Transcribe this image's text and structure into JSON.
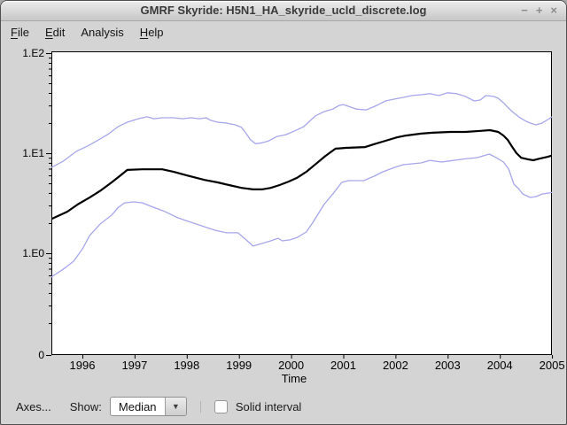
{
  "window": {
    "title": "GMRF Skyride: H5N1_HA_skyride_ucld_discrete.log",
    "controls": {
      "minimize": "−",
      "maximize": "+",
      "close": "×"
    }
  },
  "menu": {
    "items": [
      {
        "label": "File",
        "mnemonic": "F"
      },
      {
        "label": "Edit",
        "mnemonic": "E"
      },
      {
        "label": "Analysis",
        "mnemonic": null
      },
      {
        "label": "Help",
        "mnemonic": "H"
      }
    ]
  },
  "bottom_bar": {
    "axes_button": "Axes...",
    "show_label": "Show:",
    "show_value": "Median",
    "dropdown_arrow": "▼",
    "solid_interval_label": "Solid interval",
    "solid_interval_checked": false
  },
  "chart_data": {
    "type": "line",
    "title": "",
    "xlabel": "Time",
    "y_scale": "log",
    "x_range": [
      1995.41,
      2005
    ],
    "grid": false,
    "x_tick_labels": [
      "1996",
      "1997",
      "1998",
      "1999",
      "2000",
      "2001",
      "2002",
      "2003",
      "2004",
      "2005"
    ],
    "y_ticks": [
      {
        "label": "1.E2",
        "value": 100
      },
      {
        "label": "1.E1",
        "value": 10
      },
      {
        "label": "1.E0",
        "value": 1
      },
      {
        "label": "0",
        "value": null
      }
    ],
    "colors": {
      "median": "#000000",
      "interval": "#a6a6ec"
    },
    "series": [
      {
        "name": "median",
        "points": [
          [
            1995.41,
            2.2
          ],
          [
            1995.71,
            2.6
          ],
          [
            1995.92,
            3.1
          ],
          [
            1996.14,
            3.6
          ],
          [
            1996.34,
            4.2
          ],
          [
            1996.56,
            5.1
          ],
          [
            1996.73,
            6.0
          ],
          [
            1996.86,
            6.8
          ],
          [
            1997.15,
            6.9
          ],
          [
            1997.53,
            6.9
          ],
          [
            1997.75,
            6.5
          ],
          [
            1998.0,
            6.0
          ],
          [
            1998.34,
            5.4
          ],
          [
            1998.59,
            5.1
          ],
          [
            1998.81,
            4.8
          ],
          [
            1999.05,
            4.5
          ],
          [
            1999.27,
            4.35
          ],
          [
            1999.44,
            4.35
          ],
          [
            1999.61,
            4.5
          ],
          [
            1999.78,
            4.8
          ],
          [
            1999.95,
            5.2
          ],
          [
            2000.12,
            5.7
          ],
          [
            2000.29,
            6.5
          ],
          [
            2000.46,
            7.7
          ],
          [
            2000.66,
            9.4
          ],
          [
            2000.85,
            11.1
          ],
          [
            2001.05,
            11.3
          ],
          [
            2001.42,
            11.5
          ],
          [
            2001.59,
            12.3
          ],
          [
            2001.81,
            13.3
          ],
          [
            2002.03,
            14.4
          ],
          [
            2002.2,
            15.0
          ],
          [
            2002.49,
            15.7
          ],
          [
            2002.71,
            16.0
          ],
          [
            2003.05,
            16.3
          ],
          [
            2003.34,
            16.3
          ],
          [
            2003.63,
            16.7
          ],
          [
            2003.81,
            17.0
          ],
          [
            2003.97,
            16.3
          ],
          [
            2004.07,
            15.0
          ],
          [
            2004.15,
            13.6
          ],
          [
            2004.24,
            11.5
          ],
          [
            2004.32,
            10.0
          ],
          [
            2004.41,
            9.0
          ],
          [
            2004.53,
            8.7
          ],
          [
            2004.64,
            8.5
          ],
          [
            2004.75,
            8.8
          ],
          [
            2004.92,
            9.2
          ],
          [
            2005.0,
            9.5
          ]
        ]
      },
      {
        "name": "upper_interval",
        "points": [
          [
            1995.41,
            7.2
          ],
          [
            1995.63,
            8.3
          ],
          [
            1995.88,
            10.4
          ],
          [
            1996.1,
            11.8
          ],
          [
            1996.31,
            13.6
          ],
          [
            1996.51,
            15.7
          ],
          [
            1996.68,
            18.4
          ],
          [
            1996.86,
            20.4
          ],
          [
            1997.07,
            22.1
          ],
          [
            1997.24,
            23.1
          ],
          [
            1997.37,
            22.1
          ],
          [
            1997.53,
            22.6
          ],
          [
            1997.75,
            22.6
          ],
          [
            1997.92,
            22.1
          ],
          [
            1998.08,
            22.6
          ],
          [
            1998.25,
            22.1
          ],
          [
            1998.37,
            22.6
          ],
          [
            1998.46,
            21.3
          ],
          [
            1998.59,
            20.4
          ],
          [
            1998.76,
            20.0
          ],
          [
            1998.93,
            19.2
          ],
          [
            1999.05,
            18.1
          ],
          [
            1999.14,
            15.7
          ],
          [
            1999.22,
            13.6
          ],
          [
            1999.32,
            12.4
          ],
          [
            1999.44,
            12.7
          ],
          [
            1999.56,
            13.2
          ],
          [
            1999.73,
            14.7
          ],
          [
            1999.9,
            15.3
          ],
          [
            2000.07,
            16.7
          ],
          [
            2000.24,
            18.4
          ],
          [
            2000.46,
            23.5
          ],
          [
            2000.63,
            26.0
          ],
          [
            2000.8,
            27.6
          ],
          [
            2000.92,
            30.0
          ],
          [
            2001.0,
            30.6
          ],
          [
            2001.1,
            29.4
          ],
          [
            2001.25,
            27.6
          ],
          [
            2001.44,
            27.1
          ],
          [
            2001.64,
            30.0
          ],
          [
            2001.81,
            33.3
          ],
          [
            2001.98,
            34.7
          ],
          [
            2002.15,
            36.1
          ],
          [
            2002.32,
            37.7
          ],
          [
            2002.49,
            38.4
          ],
          [
            2002.66,
            39.3
          ],
          [
            2002.83,
            37.7
          ],
          [
            2003.0,
            40.1
          ],
          [
            2003.17,
            39.3
          ],
          [
            2003.34,
            36.9
          ],
          [
            2003.51,
            33.3
          ],
          [
            2003.63,
            34.0
          ],
          [
            2003.73,
            37.7
          ],
          [
            2003.88,
            36.9
          ],
          [
            2003.97,
            35.4
          ],
          [
            2004.07,
            31.9
          ],
          [
            2004.15,
            28.8
          ],
          [
            2004.24,
            26.0
          ],
          [
            2004.36,
            23.1
          ],
          [
            2004.47,
            21.3
          ],
          [
            2004.58,
            20.0
          ],
          [
            2004.69,
            19.2
          ],
          [
            2004.81,
            20.0
          ],
          [
            2004.92,
            21.7
          ],
          [
            2005.0,
            23.1
          ]
        ]
      },
      {
        "name": "lower_interval",
        "points": [
          [
            1995.41,
            0.58
          ],
          [
            1995.63,
            0.69
          ],
          [
            1995.83,
            0.83
          ],
          [
            1996.0,
            1.1
          ],
          [
            1996.14,
            1.5
          ],
          [
            1996.34,
            1.96
          ],
          [
            1996.56,
            2.4
          ],
          [
            1996.69,
            2.88
          ],
          [
            1996.81,
            3.19
          ],
          [
            1996.98,
            3.26
          ],
          [
            1997.15,
            3.19
          ],
          [
            1997.32,
            2.94
          ],
          [
            1997.58,
            2.61
          ],
          [
            1997.83,
            2.26
          ],
          [
            1998.08,
            2.04
          ],
          [
            1998.34,
            1.84
          ],
          [
            1998.54,
            1.7
          ],
          [
            1998.76,
            1.6
          ],
          [
            1998.98,
            1.6
          ],
          [
            1999.14,
            1.36
          ],
          [
            1999.27,
            1.18
          ],
          [
            1999.44,
            1.25
          ],
          [
            1999.61,
            1.33
          ],
          [
            1999.75,
            1.41
          ],
          [
            1999.83,
            1.33
          ],
          [
            1999.98,
            1.36
          ],
          [
            2000.12,
            1.44
          ],
          [
            2000.29,
            1.63
          ],
          [
            2000.42,
            2.04
          ],
          [
            2000.63,
            3.07
          ],
          [
            2000.8,
            3.91
          ],
          [
            2000.97,
            5.1
          ],
          [
            2001.1,
            5.32
          ],
          [
            2001.39,
            5.32
          ],
          [
            2001.59,
            5.89
          ],
          [
            2001.76,
            6.52
          ],
          [
            2001.98,
            7.21
          ],
          [
            2002.15,
            7.67
          ],
          [
            2002.49,
            7.99
          ],
          [
            2002.66,
            8.48
          ],
          [
            2002.88,
            8.15
          ],
          [
            2003.12,
            8.48
          ],
          [
            2003.37,
            8.84
          ],
          [
            2003.56,
            9.02
          ],
          [
            2003.8,
            9.79
          ],
          [
            2003.93,
            9.02
          ],
          [
            2004.07,
            8.15
          ],
          [
            2004.17,
            6.93
          ],
          [
            2004.27,
            4.89
          ],
          [
            2004.36,
            4.42
          ],
          [
            2004.44,
            3.91
          ],
          [
            2004.58,
            3.61
          ],
          [
            2004.69,
            3.68
          ],
          [
            2004.81,
            3.91
          ],
          [
            2004.92,
            3.98
          ],
          [
            2005.0,
            4.06
          ]
        ]
      }
    ]
  }
}
